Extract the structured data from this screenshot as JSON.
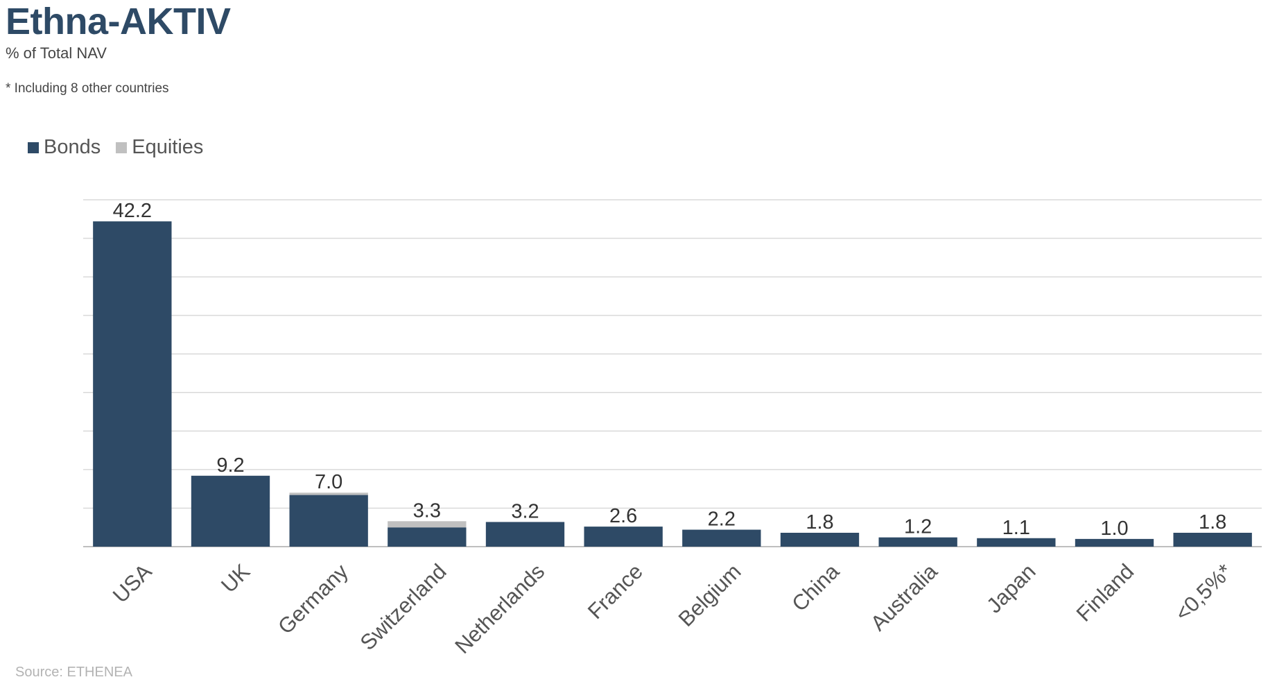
{
  "title": "Ethna-AKTIV",
  "subtitle": "% of Total NAV",
  "footnote": "* Including 8 other countries",
  "source": "Source: ETHENEA",
  "colors": {
    "bonds": "#2e4a66",
    "equities": "#c0c0c0",
    "gridline": "#d9d9d9",
    "axis": "#bfbfbf"
  },
  "chart_data": {
    "type": "bar",
    "stacked": true,
    "categories": [
      "USA",
      "UK",
      "Germany",
      "Switzerland",
      "Netherlands",
      "France",
      "Belgium",
      "China",
      "Australia",
      "Japan",
      "Finland",
      "<0,5%*"
    ],
    "series": [
      {
        "name": "Bonds",
        "values": [
          42.2,
          9.2,
          6.7,
          2.5,
          3.2,
          2.6,
          2.2,
          1.8,
          1.2,
          1.1,
          1.0,
          1.8
        ]
      },
      {
        "name": "Equities",
        "values": [
          0.0,
          0.0,
          0.3,
          0.8,
          0.0,
          0.0,
          0.0,
          0.0,
          0.0,
          0.0,
          0.0,
          0.0
        ]
      }
    ],
    "totals": [
      "42.2",
      "9.2",
      "7.0",
      "3.3",
      "3.2",
      "2.6",
      "2.2",
      "1.8",
      "1.2",
      "1.1",
      "1.0",
      "1.8"
    ],
    "ylim": [
      0,
      45
    ],
    "gridlines": true,
    "legend_position": "top-left",
    "xlabel": "",
    "ylabel": ""
  }
}
